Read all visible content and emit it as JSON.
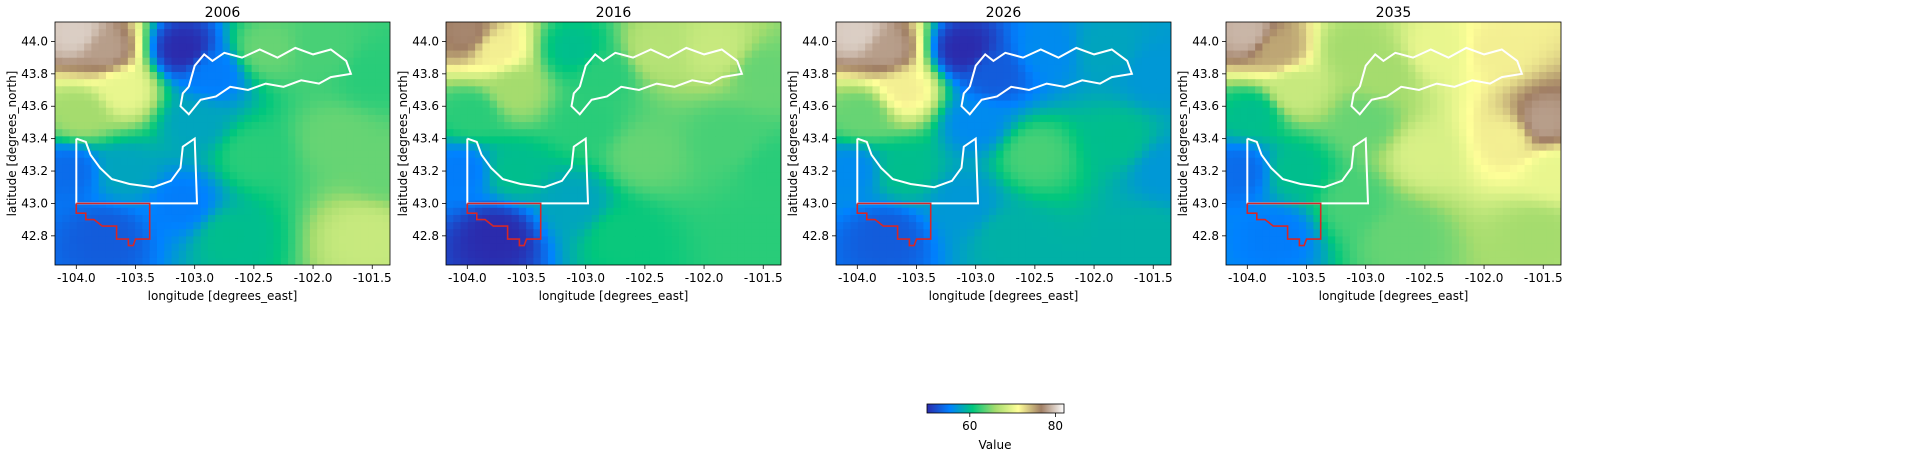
{
  "chart_data": [
    {
      "type": "heatmap",
      "title": "2006",
      "xlabel": "longitude [degrees_east]",
      "ylabel": "latitude [degrees_north]",
      "xlim": [
        -104.18,
        -101.35
      ],
      "ylim": [
        42.62,
        44.12
      ],
      "xticks": [
        "-104.0",
        "-103.5",
        "-103.0",
        "-102.5",
        "-102.0",
        "-101.5"
      ],
      "yticks": [
        "42.8",
        "43.0",
        "43.2",
        "43.4",
        "43.6",
        "43.8",
        "44.0"
      ],
      "field_points": [
        {
          "x": -104.0,
          "y": 44.05,
          "v": 80
        },
        {
          "x": -103.75,
          "y": 43.95,
          "v": 78
        },
        {
          "x": -103.6,
          "y": 43.7,
          "v": 70
        },
        {
          "x": -103.95,
          "y": 43.55,
          "v": 66
        },
        {
          "x": -103.1,
          "y": 43.95,
          "v": 50
        },
        {
          "x": -102.85,
          "y": 43.8,
          "v": 55
        },
        {
          "x": -103.0,
          "y": 43.5,
          "v": 58
        },
        {
          "x": -102.4,
          "y": 43.95,
          "v": 64
        },
        {
          "x": -101.9,
          "y": 43.95,
          "v": 63
        },
        {
          "x": -101.5,
          "y": 43.8,
          "v": 62
        },
        {
          "x": -102.5,
          "y": 43.3,
          "v": 62
        },
        {
          "x": -101.8,
          "y": 43.4,
          "v": 64
        },
        {
          "x": -104.05,
          "y": 43.2,
          "v": 54
        },
        {
          "x": -103.6,
          "y": 43.2,
          "v": 58
        },
        {
          "x": -103.1,
          "y": 43.0,
          "v": 55
        },
        {
          "x": -103.75,
          "y": 42.8,
          "v": 53
        },
        {
          "x": -102.7,
          "y": 42.8,
          "v": 60
        },
        {
          "x": -101.55,
          "y": 42.8,
          "v": 68
        },
        {
          "x": -101.4,
          "y": 43.2,
          "v": 64
        }
      ]
    },
    {
      "type": "heatmap",
      "title": "2016",
      "xlabel": "longitude [degrees_east]",
      "ylabel": "latitude [degrees_north]",
      "xlim": [
        -104.18,
        -101.35
      ],
      "ylim": [
        42.62,
        44.12
      ],
      "xticks": [
        "-104.0",
        "-103.5",
        "-103.0",
        "-102.5",
        "-102.0",
        "-101.5"
      ],
      "yticks": [
        "42.8",
        "43.0",
        "43.2",
        "43.4",
        "43.6",
        "43.8",
        "44.0"
      ],
      "field_points": [
        {
          "x": -104.0,
          "y": 44.05,
          "v": 77
        },
        {
          "x": -103.75,
          "y": 43.95,
          "v": 72
        },
        {
          "x": -103.6,
          "y": 43.7,
          "v": 66
        },
        {
          "x": -103.95,
          "y": 43.55,
          "v": 62
        },
        {
          "x": -103.1,
          "y": 43.95,
          "v": 60
        },
        {
          "x": -102.85,
          "y": 43.8,
          "v": 62
        },
        {
          "x": -103.0,
          "y": 43.5,
          "v": 62
        },
        {
          "x": -102.4,
          "y": 43.95,
          "v": 67
        },
        {
          "x": -101.9,
          "y": 43.95,
          "v": 68
        },
        {
          "x": -101.5,
          "y": 43.8,
          "v": 64
        },
        {
          "x": -102.5,
          "y": 43.3,
          "v": 64
        },
        {
          "x": -101.8,
          "y": 43.4,
          "v": 63
        },
        {
          "x": -104.05,
          "y": 43.2,
          "v": 55
        },
        {
          "x": -103.6,
          "y": 43.2,
          "v": 60
        },
        {
          "x": -103.1,
          "y": 43.0,
          "v": 58
        },
        {
          "x": -103.75,
          "y": 42.8,
          "v": 50
        },
        {
          "x": -102.7,
          "y": 42.8,
          "v": 61
        },
        {
          "x": -101.55,
          "y": 42.8,
          "v": 62
        },
        {
          "x": -101.4,
          "y": 43.2,
          "v": 62
        }
      ]
    },
    {
      "type": "heatmap",
      "title": "2026",
      "xlabel": "longitude [degrees_east]",
      "ylabel": "latitude [degrees_north]",
      "xlim": [
        -104.18,
        -101.35
      ],
      "ylim": [
        42.62,
        44.12
      ],
      "xticks": [
        "-104.0",
        "-103.5",
        "-103.0",
        "-102.5",
        "-102.0",
        "-101.5"
      ],
      "yticks": [
        "42.8",
        "43.0",
        "43.2",
        "43.4",
        "43.6",
        "43.8",
        "44.0"
      ],
      "field_points": [
        {
          "x": -104.0,
          "y": 44.05,
          "v": 80
        },
        {
          "x": -103.75,
          "y": 43.95,
          "v": 78
        },
        {
          "x": -103.6,
          "y": 43.7,
          "v": 72
        },
        {
          "x": -103.95,
          "y": 43.55,
          "v": 64
        },
        {
          "x": -103.1,
          "y": 43.95,
          "v": 50
        },
        {
          "x": -102.85,
          "y": 43.8,
          "v": 53
        },
        {
          "x": -103.0,
          "y": 43.5,
          "v": 56
        },
        {
          "x": -102.4,
          "y": 43.95,
          "v": 56
        },
        {
          "x": -101.9,
          "y": 43.95,
          "v": 58
        },
        {
          "x": -101.5,
          "y": 43.8,
          "v": 57
        },
        {
          "x": -102.5,
          "y": 43.3,
          "v": 63
        },
        {
          "x": -101.8,
          "y": 43.4,
          "v": 60
        },
        {
          "x": -104.05,
          "y": 43.2,
          "v": 56
        },
        {
          "x": -103.6,
          "y": 43.2,
          "v": 60
        },
        {
          "x": -103.1,
          "y": 43.0,
          "v": 57
        },
        {
          "x": -103.75,
          "y": 42.8,
          "v": 53
        },
        {
          "x": -102.7,
          "y": 42.8,
          "v": 59
        },
        {
          "x": -101.55,
          "y": 42.8,
          "v": 59
        },
        {
          "x": -101.4,
          "y": 43.2,
          "v": 57
        }
      ]
    },
    {
      "type": "heatmap",
      "title": "2035",
      "xlabel": "longitude [degrees_east]",
      "ylabel": "latitude [degrees_north]",
      "xlim": [
        -104.18,
        -101.35
      ],
      "ylim": [
        42.62,
        44.12
      ],
      "xticks": [
        "-104.0",
        "-103.5",
        "-103.0",
        "-102.5",
        "-102.0",
        "-101.5"
      ],
      "yticks": [
        "42.8",
        "43.0",
        "43.2",
        "43.4",
        "43.6",
        "43.8",
        "44.0"
      ],
      "field_points": [
        {
          "x": -104.0,
          "y": 44.05,
          "v": 79
        },
        {
          "x": -103.75,
          "y": 43.95,
          "v": 75
        },
        {
          "x": -103.6,
          "y": 43.7,
          "v": 68
        },
        {
          "x": -103.95,
          "y": 43.55,
          "v": 60
        },
        {
          "x": -103.1,
          "y": 43.95,
          "v": 66
        },
        {
          "x": -102.85,
          "y": 43.8,
          "v": 66
        },
        {
          "x": -103.0,
          "y": 43.5,
          "v": 64
        },
        {
          "x": -102.4,
          "y": 43.95,
          "v": 70
        },
        {
          "x": -101.9,
          "y": 43.95,
          "v": 72
        },
        {
          "x": -101.5,
          "y": 43.5,
          "v": 78
        },
        {
          "x": -102.5,
          "y": 43.3,
          "v": 69
        },
        {
          "x": -101.8,
          "y": 43.4,
          "v": 72
        },
        {
          "x": -104.05,
          "y": 43.2,
          "v": 54
        },
        {
          "x": -103.6,
          "y": 43.2,
          "v": 60
        },
        {
          "x": -103.1,
          "y": 43.0,
          "v": 63
        },
        {
          "x": -103.75,
          "y": 42.8,
          "v": 55
        },
        {
          "x": -102.7,
          "y": 42.8,
          "v": 64
        },
        {
          "x": -101.55,
          "y": 42.8,
          "v": 66
        },
        {
          "x": -101.4,
          "y": 43.2,
          "v": 70
        }
      ]
    }
  ],
  "colorbar": {
    "label": "Value",
    "vmin": 50,
    "vmax": 82,
    "ticks": [
      60,
      80
    ],
    "colormap_stops": [
      "#2b2bad",
      "#0082ff",
      "#00c77d",
      "#a5dc6e",
      "#ffff99",
      "#a07e64",
      "#fefefe"
    ]
  },
  "overlays": {
    "outline_color": "#ffffff",
    "region_color": "#d62728"
  }
}
